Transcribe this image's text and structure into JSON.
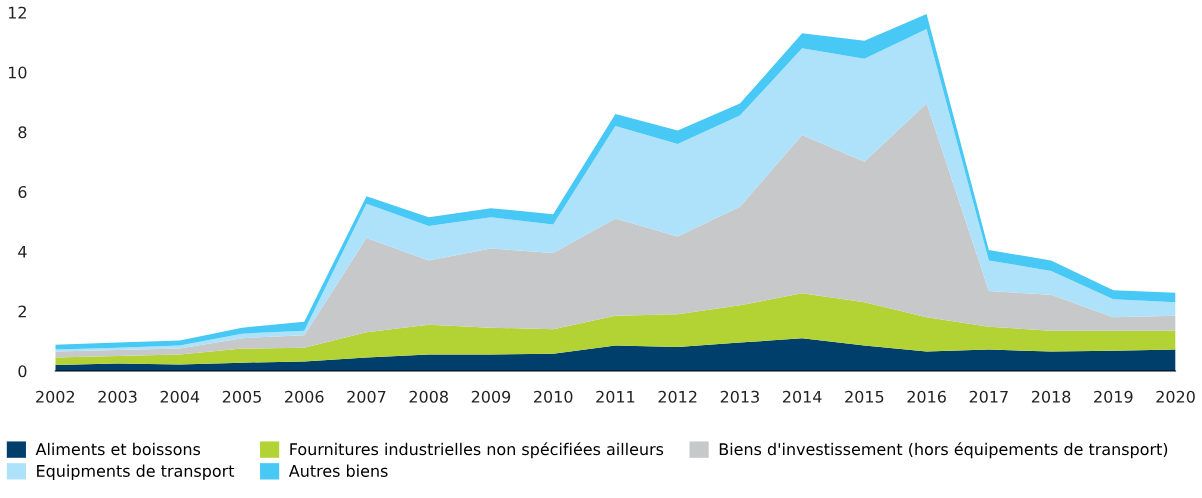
{
  "chart_data": {
    "type": "area",
    "stacked": true,
    "x": [
      2002,
      2003,
      2004,
      2005,
      2006,
      2007,
      2008,
      2009,
      2010,
      2011,
      2012,
      2013,
      2014,
      2015,
      2016,
      2017,
      2018,
      2019,
      2020
    ],
    "xlim": [
      2002,
      2020
    ],
    "xticks": [
      2002,
      2003,
      2004,
      2005,
      2006,
      2007,
      2008,
      2009,
      2010,
      2011,
      2012,
      2013,
      2014,
      2015,
      2016,
      2017,
      2018,
      2019,
      2020
    ],
    "ylim": [
      0,
      12
    ],
    "yticks": [
      0,
      2,
      4,
      6,
      8,
      10,
      12
    ],
    "grid": false,
    "legend": "bottom",
    "series": [
      {
        "name": "Aliments et boissons",
        "color": "#003f6b",
        "values": [
          0.2,
          0.25,
          0.22,
          0.28,
          0.32,
          0.45,
          0.55,
          0.55,
          0.58,
          0.85,
          0.8,
          0.95,
          1.1,
          0.85,
          0.65,
          0.72,
          0.65,
          0.68,
          0.72
        ]
      },
      {
        "name": "Fournitures industrielles non spécifiées ailleurs",
        "color": "#b3d335",
        "values": [
          0.25,
          0.25,
          0.33,
          0.47,
          0.46,
          0.85,
          1.0,
          0.9,
          0.82,
          1.0,
          1.1,
          1.25,
          1.5,
          1.45,
          1.15,
          0.76,
          0.7,
          0.67,
          0.63
        ]
      },
      {
        "name": "Biens d'investissement (hors équipements de transport)",
        "color": "#c7c8ca",
        "values": [
          0.2,
          0.2,
          0.2,
          0.35,
          0.42,
          3.15,
          2.15,
          2.65,
          2.55,
          3.25,
          2.6,
          3.3,
          5.3,
          4.7,
          7.15,
          1.2,
          1.2,
          0.45,
          0.5
        ]
      },
      {
        "name": "Equipments de transport",
        "color": "#aee2fa",
        "values": [
          0.07,
          0.08,
          0.1,
          0.15,
          0.15,
          1.15,
          1.15,
          1.05,
          0.95,
          3.1,
          3.1,
          3.05,
          2.9,
          3.45,
          2.5,
          1.02,
          0.8,
          0.6,
          0.45
        ]
      },
      {
        "name": "Autres biens",
        "color": "#48c8f5",
        "values": [
          0.16,
          0.17,
          0.17,
          0.2,
          0.3,
          0.25,
          0.3,
          0.3,
          0.35,
          0.4,
          0.45,
          0.4,
          0.5,
          0.6,
          0.5,
          0.35,
          0.35,
          0.3,
          0.32
        ]
      }
    ]
  }
}
